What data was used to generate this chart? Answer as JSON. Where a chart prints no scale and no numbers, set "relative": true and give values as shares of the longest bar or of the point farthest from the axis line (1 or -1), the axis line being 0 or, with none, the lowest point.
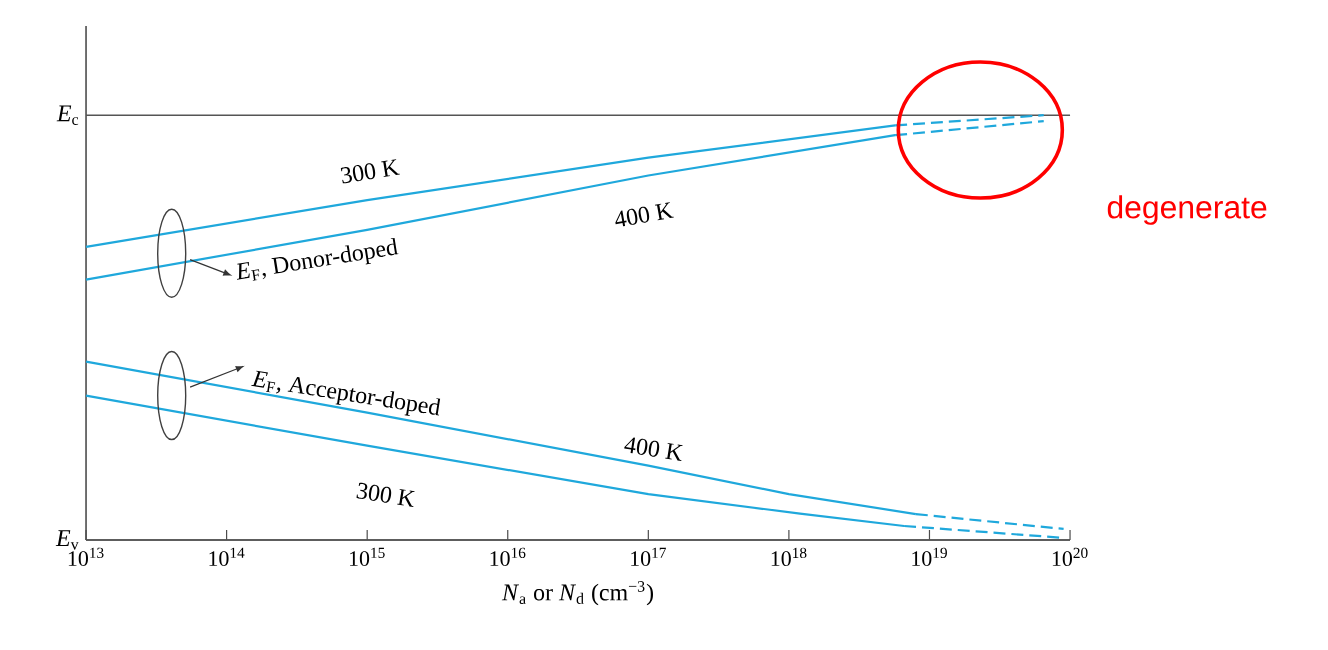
{
  "chart_data": {
    "type": "line",
    "xlabel": "*N*$_{a}$ or *N*$_{d}$ (cm$^{−3}$)",
    "log": "x",
    "relative": true,
    "xlim": [
      10000000000000.0,
      1e+20
    ],
    "xticks": [
      {
        "value": 10000000000000.0,
        "label": "10$^{13}$"
      },
      {
        "value": 100000000000000.0,
        "label": "10$^{14}$"
      },
      {
        "value": 1000000000000000.0,
        "label": "10$^{15}$"
      },
      {
        "value": 1e+16,
        "label": "10$^{16}$"
      },
      {
        "value": 1e+17,
        "label": "10$^{17}$"
      },
      {
        "value": 1e+18,
        "label": "10$^{18}$"
      },
      {
        "value": 1e+19,
        "label": "10$^{19}$"
      },
      {
        "value": 1e+20,
        "label": "10$^{20}$"
      }
    ],
    "ref_lines": [
      {
        "axis": "y",
        "value": 1,
        "label": "*E*$_{c}$",
        "color": "#555555"
      },
      {
        "axis": "y",
        "value": 0,
        "label": "*E*$_{v}$",
        "color": "#555555"
      }
    ],
    "series": [
      {
        "color": "#1fa8dc",
        "line_style": "solid",
        "x": [
          10000000000000.0,
          1000000000000000.0,
          1e+17,
          5.7e+18
        ],
        "values": [
          0.69,
          0.8,
          0.9,
          0.976
        ]
      },
      {
        "color": "#1fa8dc",
        "line_style": "dashed",
        "x": [
          5.7e+18,
          6.5e+19
        ],
        "values": [
          0.976,
          1.0
        ]
      },
      {
        "color": "#1fa8dc",
        "line_style": "solid",
        "x": [
          10000000000000.0,
          1000000000000000.0,
          1e+17,
          5.7e+18
        ],
        "values": [
          0.613,
          0.73,
          0.858,
          0.953
        ]
      },
      {
        "color": "#1fa8dc",
        "line_style": "dashed",
        "x": [
          5.7e+18,
          6.5e+19
        ],
        "values": [
          0.953,
          0.986
        ]
      },
      {
        "color": "#1fa8dc",
        "line_style": "solid",
        "x": [
          10000000000000.0,
          1000000000000000.0,
          1e+17,
          1e+18,
          8e+18
        ],
        "values": [
          0.42,
          0.3,
          0.175,
          0.108,
          0.061
        ]
      },
      {
        "color": "#1fa8dc",
        "line_style": "dashed",
        "x": [
          8e+18,
          9e+19
        ],
        "values": [
          0.061,
          0.026
        ]
      },
      {
        "color": "#1fa8dc",
        "line_style": "solid",
        "x": [
          10000000000000.0,
          1000000000000000.0,
          1e+17,
          1.2e+18,
          6.6e+18
        ],
        "values": [
          0.34,
          0.222,
          0.108,
          0.062,
          0.033
        ]
      },
      {
        "color": "#1fa8dc",
        "line_style": "dashed",
        "x": [
          6.6e+18,
          9e+19
        ],
        "values": [
          0.033,
          0.005
        ]
      }
    ],
    "annotations": [
      "300 K",
      "400 K",
      "*E*$_{F}$, Donor-doped",
      "*E*$_{F}$, Acceptor-doped",
      "400 K",
      "300 K",
      "degenerate"
    ]
  }
}
